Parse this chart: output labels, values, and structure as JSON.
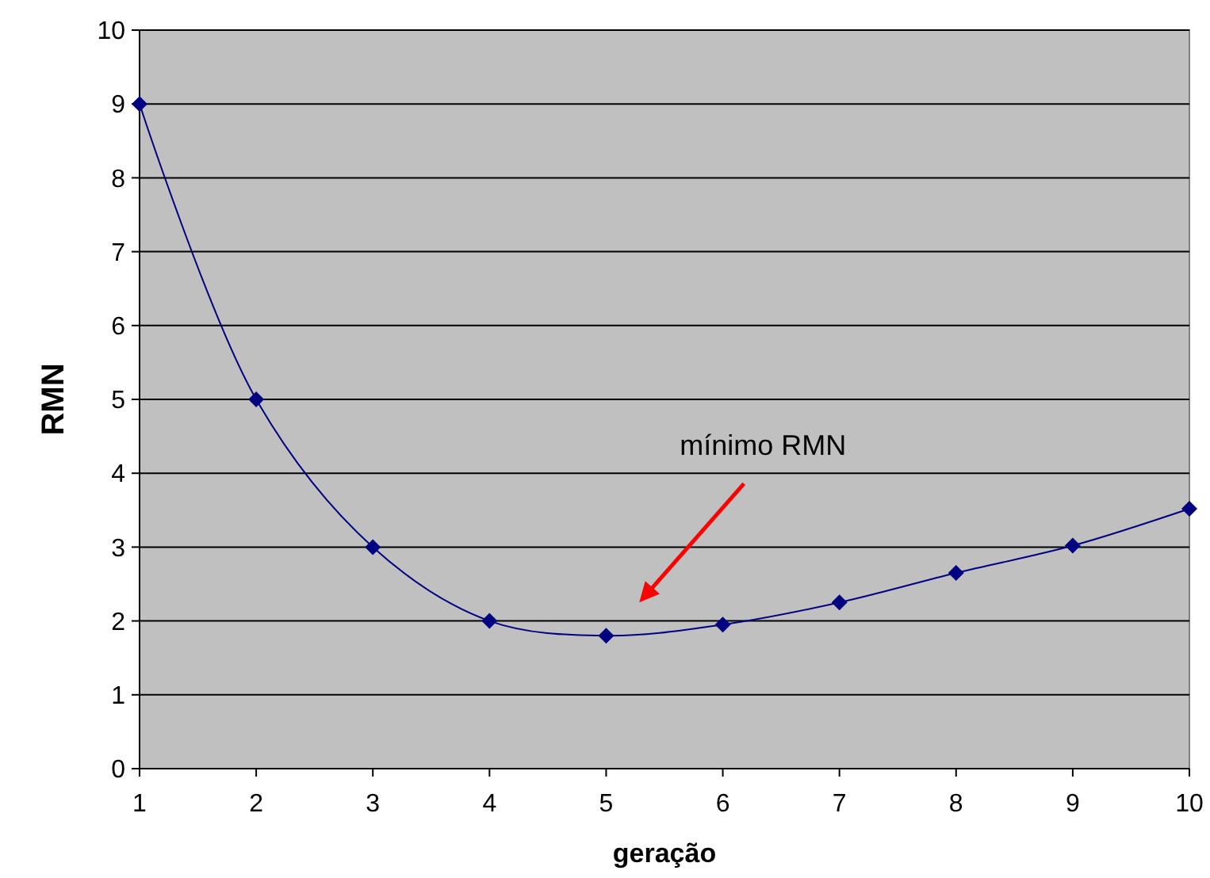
{
  "chart_data": {
    "type": "line",
    "xlabel": "geração",
    "ylabel": "RMN",
    "x": [
      1,
      2,
      3,
      4,
      5,
      6,
      7,
      8,
      9,
      10
    ],
    "series": [
      {
        "color": "#000080",
        "values": [
          9,
          5,
          3,
          2,
          1.8,
          1.95,
          2.25,
          2.65,
          3.02,
          3.52
        ]
      }
    ],
    "xlim": [
      1,
      10
    ],
    "xticks": [
      1,
      2,
      3,
      4,
      5,
      6,
      7,
      8,
      9,
      10
    ],
    "ylim": [
      0,
      10
    ],
    "yticks": [
      0,
      1,
      2,
      3,
      4,
      5,
      6,
      7,
      8,
      9,
      10
    ],
    "grid": "y",
    "marker": "diamond",
    "line_style": "solid",
    "annotations": [
      "mínimo RMN"
    ]
  }
}
